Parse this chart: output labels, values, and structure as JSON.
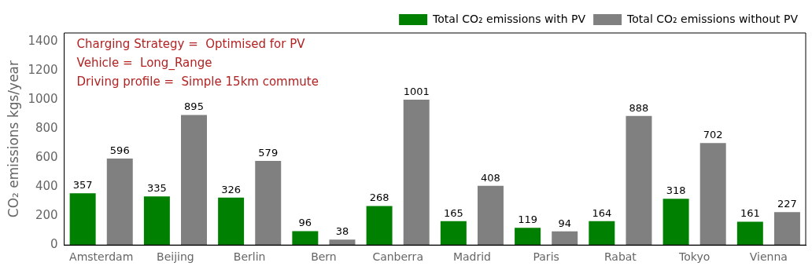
{
  "chart_data": {
    "type": "bar",
    "categories": [
      "Amsterdam",
      "Beijing",
      "Berlin",
      "Bern",
      "Canberra",
      "Madrid",
      "Paris",
      "Rabat",
      "Tokyo",
      "Vienna"
    ],
    "series": [
      {
        "name": "Total CO₂ emissions with PV",
        "color": "#008000",
        "values": [
          357,
          335,
          326,
          96,
          268,
          165,
          119,
          164,
          318,
          161
        ]
      },
      {
        "name": "Total CO₂ emissions without PV",
        "color": "#808080",
        "values": [
          596,
          895,
          579,
          38,
          1001,
          408,
          94,
          888,
          702,
          227
        ]
      }
    ],
    "ylabel": "CO₂ emissions kgs/year",
    "ylim": [
      0,
      1460
    ],
    "yticks": [
      0,
      200,
      400,
      600,
      800,
      1000,
      1200,
      1400
    ],
    "annotations": [
      "Charging Strategy =  Optimised for PV",
      "Vehicle =  Long_Range",
      "Driving profile =  Simple 15km commute"
    ],
    "data_labels": true,
    "legend": "top right",
    "grid": false
  }
}
